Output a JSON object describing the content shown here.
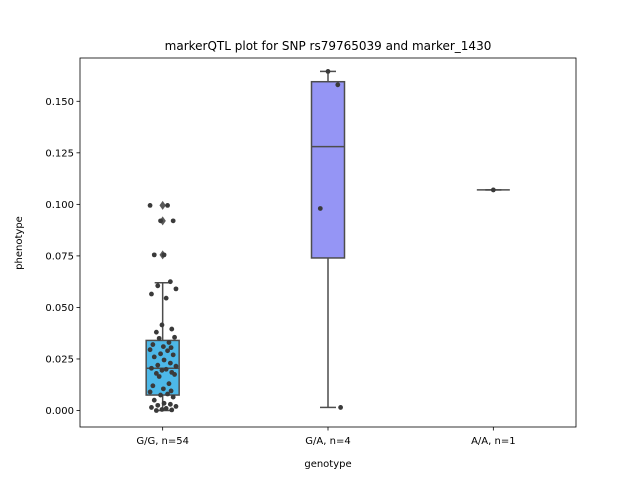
{
  "chart_data": {
    "type": "box",
    "title": "markerQTL plot for SNP rs79765039 and marker_1430",
    "xlabel": "genotype",
    "ylabel": "phenotype",
    "ylim": [
      -0.008,
      0.171
    ],
    "yticks": [
      "0.000",
      "0.025",
      "0.050",
      "0.075",
      "0.100",
      "0.125",
      "0.150"
    ],
    "ytick_values": [
      0.0,
      0.025,
      0.05,
      0.075,
      0.1,
      0.125,
      0.15
    ],
    "grid": false,
    "categories": [
      "G/G, n=54",
      "G/A, n=4",
      "A/A, n=1"
    ],
    "groups": [
      {
        "label": "G/G, n=54",
        "color": "#4db8e8",
        "box": {
          "q1": 0.0075,
          "median": 0.0205,
          "q3": 0.034,
          "whisker_low": 0.0,
          "whisker_high": 0.062
        },
        "outliers": [
          0.0755,
          0.092,
          0.0995
        ],
        "points": [
          0.0995,
          0.0995,
          0.092,
          0.092,
          0.0755,
          0.0755,
          0.0625,
          0.0605,
          0.059,
          0.0565,
          0.0545,
          0.0415,
          0.0395,
          0.038,
          0.0355,
          0.035,
          0.033,
          0.032,
          0.031,
          0.0305,
          0.0295,
          0.029,
          0.0275,
          0.027,
          0.026,
          0.0245,
          0.023,
          0.022,
          0.0215,
          0.0205,
          0.02,
          0.0195,
          0.0185,
          0.018,
          0.0175,
          0.0165,
          0.013,
          0.012,
          0.0105,
          0.0095,
          0.009,
          0.008,
          0.0075,
          0.0065,
          0.005,
          0.0035,
          0.003,
          0.0025,
          0.002,
          0.0015,
          0.001,
          0.0005,
          0.0003,
          0.0
        ]
      },
      {
        "label": "G/A, n=4",
        "color": "#9595f5",
        "box": {
          "q1": 0.074,
          "median": 0.128,
          "q3": 0.1595,
          "whisker_low": 0.0015,
          "whisker_high": 0.1645
        },
        "outliers": [],
        "points": [
          0.1645,
          0.158,
          0.098,
          0.0015
        ]
      },
      {
        "label": "A/A, n=1",
        "color": "#c0c0f0",
        "box": {
          "q1": 0.107,
          "median": 0.107,
          "q3": 0.107,
          "whisker_low": 0.107,
          "whisker_high": 0.107
        },
        "outliers": [],
        "points": [
          0.107
        ]
      }
    ]
  }
}
